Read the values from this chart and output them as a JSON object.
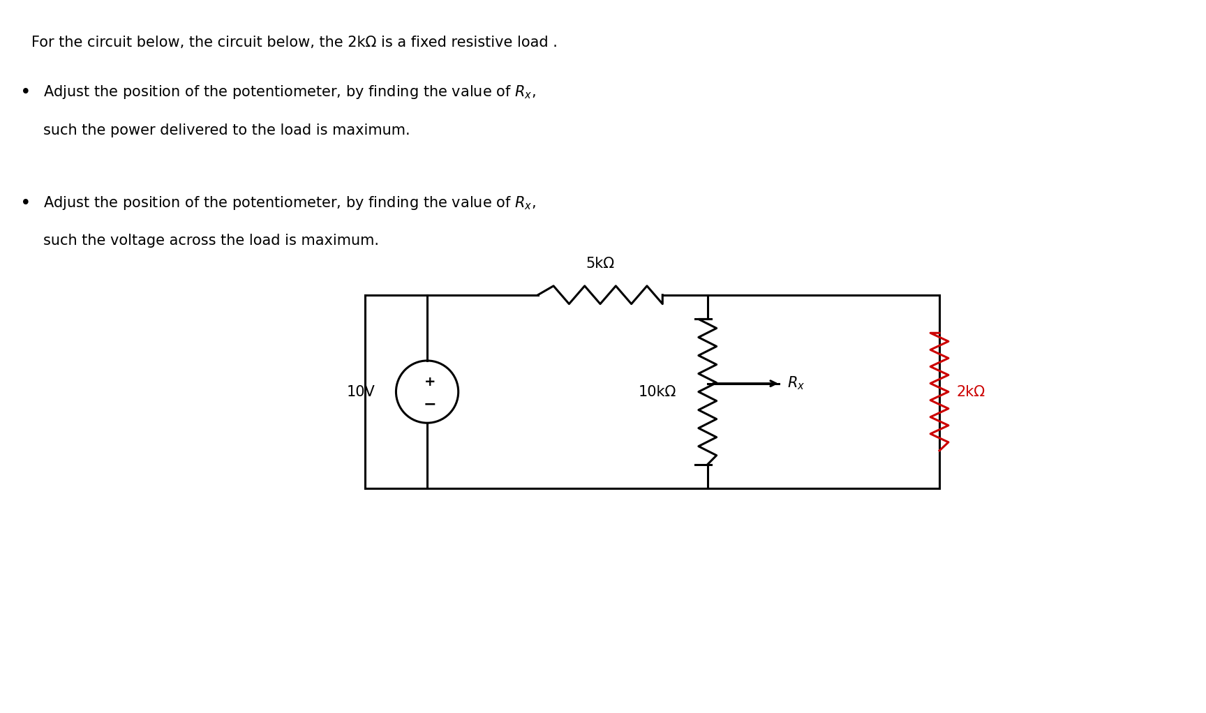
{
  "bg_color": "#ffffff",
  "text_color": "#000000",
  "title_line": "For the circuit below, the circuit below, the 2kΩ is a fixed resistive load .",
  "bullet1_line1": "Adjust the position of the potentiometer, by finding the value of $R_x$,",
  "bullet1_line2": "such the power delivered to the load is maximum.",
  "bullet2_line1": "Adjust the position of the potentiometer, by finding the value of $R_x$,",
  "bullet2_line2": "such the voltage across the load is maximum.",
  "font_size_main": 15,
  "circuit": {
    "vs_label": "10V",
    "r1_label": "5kΩ",
    "r2_label": "10kΩ",
    "rx_label": "$R_x$",
    "rload_label": "2kΩ",
    "black_color": "#000000",
    "red_color": "#cc0000"
  }
}
